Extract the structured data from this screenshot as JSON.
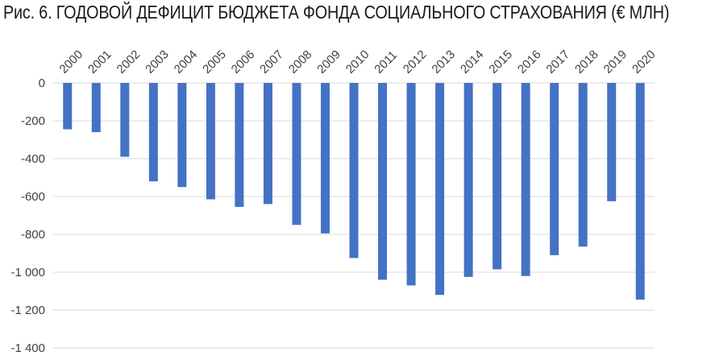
{
  "chart_data": {
    "type": "bar",
    "title": "Рис. 6. ГОДОВОЙ ДЕФИЦИТ БЮДЖЕТА ФОНДА СОЦИАЛЬНОГО СТРАХОВАНИЯ (€ МЛН)",
    "xlabel": "",
    "ylabel": "",
    "categories": [
      "2000",
      "2001",
      "2002",
      "2003",
      "2004",
      "2005",
      "2006",
      "2007",
      "2008",
      "2009",
      "2010",
      "2011",
      "2012",
      "2013",
      "2014",
      "2015",
      "2016",
      "2017",
      "2018",
      "2019",
      "2020"
    ],
    "values": [
      -245,
      -260,
      -390,
      -520,
      -550,
      -615,
      -655,
      -640,
      -750,
      -795,
      -925,
      -1040,
      -1070,
      -1120,
      -1025,
      -985,
      -1020,
      -910,
      -865,
      -625,
      -1145
    ],
    "ylim": [
      -1400,
      0
    ],
    "yticks": [
      0,
      -200,
      -400,
      -600,
      -800,
      -1000,
      -1200,
      -1400
    ],
    "ytick_labels": [
      "0",
      "-200",
      "-400",
      "-600",
      "-800",
      "-1 000",
      "-1 200",
      "-1 400"
    ],
    "grid": true,
    "legend": "none",
    "bar_color": "#4472c4",
    "x_labels_position": "top, rotated"
  }
}
